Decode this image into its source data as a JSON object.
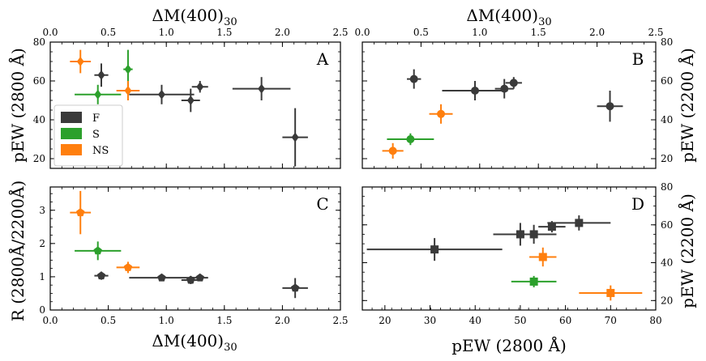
{
  "colors": {
    "F": "#3a3a3a",
    "S": "#2ca02c",
    "NS": "#ff7f0e",
    "axis": "#000000"
  },
  "legend": {
    "entries": [
      {
        "key": "F",
        "label": "F"
      },
      {
        "key": "S",
        "label": "S"
      },
      {
        "key": "NS",
        "label": "NS"
      }
    ]
  },
  "axes": {
    "dm_label_main": "ΔM(400)",
    "dm_label_sub": "30",
    "pew2800_label": "pEW (2800 Å)",
    "pew2200_label": "pEW (2200 Å)",
    "ratio_label": "R (2800Å/2200Å)"
  },
  "chart_data": [
    {
      "panel": "A",
      "type": "scatter",
      "marker": "diamond",
      "xlabel": "ΔM(400)30",
      "ylabel": "pEW (2800 Å)",
      "xlim": [
        0,
        2.5
      ],
      "ylim": [
        15,
        80
      ],
      "xticks": [
        0.0,
        0.5,
        1.0,
        1.5,
        2.0,
        2.5
      ],
      "xtick_labels": [
        "0.0",
        "0.5",
        "1.0",
        "1.5",
        "2.0",
        "2.5"
      ],
      "yticks": [
        20,
        40,
        60,
        80
      ],
      "ytick_labels": [
        "20",
        "40",
        "60",
        "80"
      ],
      "points": [
        {
          "group": "F",
          "x": 0.44,
          "xerr": 0.06,
          "y": 63,
          "yerr": 6
        },
        {
          "group": "F",
          "x": 0.96,
          "xerr": 0.28,
          "y": 53,
          "yerr": 5
        },
        {
          "group": "F",
          "x": 1.21,
          "xerr": 0.08,
          "y": 50,
          "yerr": 6
        },
        {
          "group": "F",
          "x": 1.29,
          "xerr": 0.07,
          "y": 57,
          "yerr": 3
        },
        {
          "group": "F",
          "x": 1.82,
          "xerr": 0.25,
          "y": 56,
          "yerr": 6
        },
        {
          "group": "F",
          "x": 2.11,
          "xerr": 0.11,
          "y": 31,
          "yerr": 15
        },
        {
          "group": "S",
          "x": 0.67,
          "xerr": 0.04,
          "y": 66,
          "yerr": 10
        },
        {
          "group": "S",
          "x": 0.41,
          "xerr": 0.2,
          "y": 53,
          "yerr": 5
        },
        {
          "group": "NS",
          "x": 0.26,
          "xerr": 0.09,
          "y": 70,
          "yerr": 6
        },
        {
          "group": "NS",
          "x": 0.67,
          "xerr": 0.1,
          "y": 55,
          "yerr": 5
        }
      ]
    },
    {
      "panel": "B",
      "type": "scatter",
      "marker": "circle",
      "xlabel": "ΔM(400)30",
      "ylabel": "pEW (2200 Å)",
      "xlim": [
        0,
        2.5
      ],
      "ylim": [
        15,
        80
      ],
      "xticks": [
        0.0,
        0.5,
        1.0,
        1.5,
        2.0,
        2.5
      ],
      "xtick_labels": [
        "0.0",
        "0.5",
        "1.0",
        "1.5",
        "2.0",
        "2.5"
      ],
      "yticks": [
        20,
        40,
        60,
        80
      ],
      "ytick_labels": [
        "20",
        "40",
        "60",
        "80"
      ],
      "points": [
        {
          "group": "F",
          "x": 0.44,
          "xerr": 0.06,
          "y": 61,
          "yerr": 5
        },
        {
          "group": "F",
          "x": 0.96,
          "xerr": 0.28,
          "y": 55,
          "yerr": 5
        },
        {
          "group": "F",
          "x": 1.21,
          "xerr": 0.08,
          "y": 56,
          "yerr": 5
        },
        {
          "group": "F",
          "x": 1.29,
          "xerr": 0.07,
          "y": 59,
          "yerr": 3
        },
        {
          "group": "F",
          "x": 2.11,
          "xerr": 0.11,
          "y": 47,
          "yerr": 8
        },
        {
          "group": "S",
          "x": 0.41,
          "xerr": 0.2,
          "y": 30,
          "yerr": 3
        },
        {
          "group": "NS",
          "x": 0.26,
          "xerr": 0.09,
          "y": 24,
          "yerr": 4
        },
        {
          "group": "NS",
          "x": 0.67,
          "xerr": 0.1,
          "y": 43,
          "yerr": 5
        }
      ]
    },
    {
      "panel": "C",
      "type": "scatter",
      "marker": "pentagon",
      "xlabel": "ΔM(400)30",
      "ylabel": "R (2800Å/2200Å)",
      "xlim": [
        0,
        2.5
      ],
      "ylim": [
        0,
        3.7
      ],
      "xticks": [
        0.0,
        0.5,
        1.0,
        1.5,
        2.0,
        2.5
      ],
      "xtick_labels": [
        "0.0",
        "0.5",
        "1.0",
        "1.5",
        "2.0",
        "2.5"
      ],
      "yticks": [
        0,
        1,
        2,
        3
      ],
      "ytick_labels": [
        "0",
        "1",
        "2",
        "3"
      ],
      "points": [
        {
          "group": "F",
          "x": 0.44,
          "xerr": 0.06,
          "y": 1.03,
          "yerr": 0.12
        },
        {
          "group": "F",
          "x": 0.96,
          "xerr": 0.28,
          "y": 0.97,
          "yerr": 0.1
        },
        {
          "group": "F",
          "x": 1.21,
          "xerr": 0.08,
          "y": 0.9,
          "yerr": 0.12
        },
        {
          "group": "F",
          "x": 1.29,
          "xerr": 0.07,
          "y": 0.97,
          "yerr": 0.06
        },
        {
          "group": "F",
          "x": 2.11,
          "xerr": 0.11,
          "y": 0.66,
          "yerr": 0.3
        },
        {
          "group": "S",
          "x": 0.41,
          "xerr": 0.2,
          "y": 1.78,
          "yerr": 0.28
        },
        {
          "group": "NS",
          "x": 0.26,
          "xerr": 0.09,
          "y": 2.93,
          "yerr": 0.65
        },
        {
          "group": "NS",
          "x": 0.67,
          "xerr": 0.1,
          "y": 1.28,
          "yerr": 0.17
        }
      ]
    },
    {
      "panel": "D",
      "type": "scatter",
      "marker": "square",
      "xlabel": "pEW (2800 Å)",
      "ylabel": "pEW (2200 Å)",
      "xlim": [
        15,
        80
      ],
      "ylim": [
        15,
        80
      ],
      "xticks": [
        20,
        30,
        40,
        50,
        60,
        70,
        80
      ],
      "xtick_labels": [
        "20",
        "30",
        "40",
        "50",
        "60",
        "70",
        "80"
      ],
      "yticks": [
        20,
        40,
        60,
        80
      ],
      "ytick_labels": [
        "20",
        "40",
        "60",
        "80"
      ],
      "points": [
        {
          "group": "F",
          "x": 31,
          "xerr": 15,
          "y": 47,
          "yerr": 6
        },
        {
          "group": "F",
          "x": 50,
          "xerr": 6,
          "y": 55,
          "yerr": 6
        },
        {
          "group": "F",
          "x": 53,
          "xerr": 5,
          "y": 55,
          "yerr": 5
        },
        {
          "group": "F",
          "x": 57,
          "xerr": 3,
          "y": 59,
          "yerr": 3
        },
        {
          "group": "F",
          "x": 63,
          "xerr": 7,
          "y": 61,
          "yerr": 4
        },
        {
          "group": "S",
          "x": 53,
          "xerr": 5,
          "y": 30,
          "yerr": 3
        },
        {
          "group": "NS",
          "x": 55,
          "xerr": 3,
          "y": 43,
          "yerr": 5
        },
        {
          "group": "NS",
          "x": 70,
          "xerr": 7,
          "y": 24,
          "yerr": 4
        }
      ]
    }
  ]
}
